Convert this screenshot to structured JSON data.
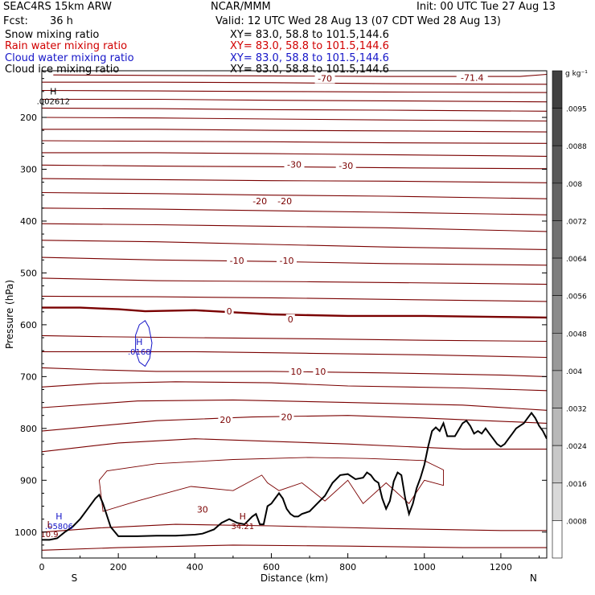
{
  "header": {
    "model": "SEAC4RS 15km ARW",
    "org": "NCAR/MMM",
    "init": "Init: 00 UTC Tue 27 Aug 13",
    "fcst_label": "Fcst:",
    "fcst_value": "36 h",
    "valid": "Valid: 12 UTC Wed 28 Aug 13 (07 CDT Wed 28 Aug 13)",
    "fields": [
      {
        "name": "Snow mixing ratio",
        "xy": "XY=  83.0, 58.8 to 101.5,144.6",
        "color": "#000000"
      },
      {
        "name": "Rain water mixing ratio",
        "xy": "XY=  83.0, 58.8 to 101.5,144.6",
        "color": "#d10000"
      },
      {
        "name": "Cloud water mixing ratio",
        "xy": "XY=  83.0, 58.8 to 101.5,144.6",
        "color": "#1515c8"
      },
      {
        "name": "Cloud ice mixing ratio",
        "xy": "XY=  83.0, 58.8 to 101.5,144.6",
        "color": "#000000"
      }
    ]
  },
  "chart_data": {
    "type": "line",
    "xlabel": "Distance (km)",
    "ylabel": "Pressure (hPa)",
    "xlim": [
      0,
      1320
    ],
    "ylim": [
      1050,
      110
    ],
    "x_ticks": [
      0,
      200,
      400,
      600,
      800,
      1000,
      1200
    ],
    "y_ticks": [
      200,
      300,
      400,
      500,
      600,
      700,
      800,
      900,
      1000
    ],
    "y_tick_labels": [
      "200",
      "300",
      "400",
      "500",
      "600",
      "700",
      "800",
      "900",
      "1000"
    ],
    "endpoint_labels": {
      "left": "S",
      "right": "N"
    },
    "temperature_contours": {
      "color": "#7a0000",
      "bold_level": 0,
      "lines": [
        {
          "x": [
            0,
            200,
            500,
            800,
            1100,
            1320
          ],
          "p": [
            1035,
            1030,
            1025,
            1027,
            1030,
            1030
          ]
        },
        {
          "x": [
            0,
            150,
            350,
            600,
            900,
            1200,
            1320
          ],
          "p": [
            1000,
            992,
            985,
            988,
            993,
            997,
            997
          ]
        },
        {
          "x": [
            0,
            200,
            400,
            600,
            800,
            1100,
            1320
          ],
          "p": [
            845,
            828,
            820,
            825,
            830,
            840,
            840
          ]
        },
        {
          "x": [
            0,
            300,
            550,
            800,
            1000,
            1320
          ],
          "p": [
            805,
            785,
            778,
            775,
            780,
            790
          ]
        },
        {
          "x": [
            0,
            250,
            500,
            800,
            1100,
            1320
          ],
          "p": [
            760,
            747,
            745,
            750,
            755,
            765
          ]
        },
        {
          "x": [
            0,
            150,
            350,
            600,
            800,
            1100,
            1320
          ],
          "p": [
            720,
            713,
            710,
            712,
            718,
            722,
            727
          ]
        },
        {
          "x": [
            0,
            150,
            300,
            600,
            900,
            1200,
            1320
          ],
          "p": [
            683,
            687,
            690,
            690,
            693,
            697,
            700
          ]
        },
        {
          "x": [
            0,
            200,
            400,
            700,
            1000,
            1320
          ],
          "p": [
            652,
            652,
            652,
            655,
            658,
            663
          ]
        },
        {
          "x": [
            0,
            150,
            400,
            700,
            1000,
            1320
          ],
          "p": [
            621,
            623,
            625,
            627,
            630,
            632
          ]
        },
        {
          "x": [
            0,
            100,
            200,
            270,
            400,
            600,
            800,
            1000,
            1200,
            1320
          ],
          "p": [
            567,
            567,
            570,
            574,
            572,
            580,
            583,
            583,
            585,
            586
          ]
        },
        {
          "x": [
            0,
            300,
            600,
            900,
            1320
          ],
          "p": [
            545,
            546,
            548,
            551,
            555
          ]
        },
        {
          "x": [
            0,
            300,
            700,
            1100,
            1320
          ],
          "p": [
            510,
            515,
            517,
            520,
            522
          ]
        },
        {
          "x": [
            0,
            300,
            600,
            900,
            1320
          ],
          "p": [
            470,
            475,
            478,
            482,
            485
          ]
        },
        {
          "x": [
            0,
            300,
            600,
            900,
            1320
          ],
          "p": [
            437,
            440,
            445,
            450,
            455
          ]
        },
        {
          "x": [
            0,
            300,
            600,
            900,
            1320
          ],
          "p": [
            405,
            407,
            410,
            413,
            420
          ]
        },
        {
          "x": [
            0,
            300,
            600,
            900,
            1320
          ],
          "p": [
            375,
            377,
            380,
            383,
            388
          ]
        },
        {
          "x": [
            0,
            300,
            600,
            900,
            1320
          ],
          "p": [
            345,
            347,
            350,
            352,
            357
          ]
        },
        {
          "x": [
            0,
            300,
            600,
            900,
            1320
          ],
          "p": [
            318,
            320,
            322,
            323,
            326
          ]
        },
        {
          "x": [
            0,
            300,
            600,
            900,
            1320
          ],
          "p": [
            292,
            294,
            295,
            297,
            299
          ]
        },
        {
          "x": [
            0,
            300,
            600,
            900,
            1320
          ],
          "p": [
            268,
            268,
            270,
            272,
            275
          ]
        },
        {
          "x": [
            0,
            300,
            600,
            900,
            1320
          ],
          "p": [
            245,
            246,
            247,
            249,
            250
          ]
        },
        {
          "x": [
            0,
            300,
            600,
            900,
            1320
          ],
          "p": [
            223,
            223,
            225,
            226,
            228
          ]
        },
        {
          "x": [
            0,
            300,
            600,
            900,
            1320
          ],
          "p": [
            200,
            201,
            203,
            205,
            207
          ]
        },
        {
          "x": [
            0,
            300,
            600,
            900,
            1320
          ],
          "p": [
            182,
            183,
            185,
            186,
            188
          ]
        },
        {
          "x": [
            0,
            300,
            600,
            900,
            1320
          ],
          "p": [
            165,
            165,
            167,
            168,
            170
          ]
        },
        {
          "x": [
            0,
            300,
            600,
            900,
            1320
          ],
          "p": [
            148,
            149,
            150,
            151,
            152
          ]
        },
        {
          "x": [
            0,
            300,
            600,
            900,
            1320
          ],
          "p": [
            132,
            132,
            133,
            135,
            136
          ]
        },
        {
          "x": [
            30,
            300,
            600,
            900,
            1250,
            1320
          ],
          "p": [
            118,
            119,
            120,
            121,
            121,
            117
          ]
        }
      ],
      "labels": [
        {
          "text": "-70",
          "x": 740,
          "p": 125
        },
        {
          "text": "-71.4",
          "x": 1125,
          "p": 123
        },
        {
          "text": "-30",
          "x": 660,
          "p": 291
        },
        {
          "text": "-30",
          "x": 795,
          "p": 293
        },
        {
          "text": "-20",
          "x": 570,
          "p": 361
        },
        {
          "text": "-20",
          "x": 635,
          "p": 361
        },
        {
          "text": "-10",
          "x": 510,
          "p": 476
        },
        {
          "text": "-10",
          "x": 640,
          "p": 476
        },
        {
          "text": "0",
          "x": 490,
          "p": 574
        },
        {
          "text": "0",
          "x": 650,
          "p": 589
        },
        {
          "text": "10",
          "x": 665,
          "p": 690
        },
        {
          "text": "10",
          "x": 728,
          "p": 690
        },
        {
          "text": "20",
          "x": 480,
          "p": 783
        },
        {
          "text": "20",
          "x": 640,
          "p": 778
        },
        {
          "text": "30",
          "x": 420,
          "p": 956
        }
      ]
    },
    "rain_region": {
      "color": "#7a0000",
      "x": [
        150,
        170,
        300,
        500,
        700,
        850,
        1000,
        1050,
        1050,
        1000,
        960,
        900,
        840,
        800,
        740,
        680,
        620,
        590,
        575,
        500,
        390,
        250,
        160,
        150
      ],
      "p": [
        900,
        882,
        868,
        860,
        856,
        858,
        862,
        880,
        910,
        900,
        945,
        905,
        945,
        900,
        940,
        905,
        920,
        905,
        890,
        920,
        912,
        940,
        960,
        900
      ]
    },
    "cloud_water_contour": {
      "color": "#1515c8",
      "x": [
        245,
        255,
        270,
        280,
        288,
        282,
        270,
        255,
        245
      ],
      "p": [
        620,
        600,
        592,
        605,
        635,
        665,
        680,
        672,
        650
      ]
    },
    "terrain": {
      "color": "#000000",
      "x": [
        0,
        20,
        40,
        60,
        80,
        100,
        120,
        140,
        150,
        160,
        180,
        200,
        250,
        300,
        350,
        400,
        420,
        450,
        470,
        490,
        510,
        530,
        550,
        560,
        570,
        580,
        590,
        600,
        610,
        620,
        630,
        640,
        650,
        660,
        670,
        680,
        700,
        720,
        740,
        760,
        780,
        800,
        820,
        840,
        850,
        860,
        870,
        880,
        890,
        900,
        910,
        920,
        930,
        940,
        950,
        960,
        970,
        980,
        990,
        1000,
        1010,
        1020,
        1030,
        1040,
        1050,
        1060,
        1080,
        1100,
        1110,
        1120,
        1130,
        1140,
        1150,
        1160,
        1170,
        1180,
        1190,
        1200,
        1210,
        1220,
        1230,
        1240,
        1250,
        1260,
        1270,
        1280,
        1290,
        1300,
        1310,
        1320
      ],
      "p": [
        1015,
        1015,
        1012,
        1000,
        990,
        975,
        955,
        935,
        928,
        945,
        990,
        1008,
        1008,
        1007,
        1007,
        1005,
        1003,
        995,
        982,
        975,
        982,
        985,
        970,
        965,
        985,
        985,
        950,
        945,
        935,
        925,
        935,
        955,
        965,
        970,
        970,
        965,
        960,
        945,
        930,
        905,
        890,
        888,
        898,
        895,
        885,
        890,
        900,
        905,
        935,
        955,
        940,
        902,
        885,
        890,
        935,
        965,
        945,
        915,
        895,
        870,
        835,
        805,
        798,
        805,
        790,
        815,
        815,
        790,
        785,
        795,
        810,
        805,
        810,
        800,
        810,
        820,
        830,
        835,
        830,
        820,
        810,
        800,
        795,
        790,
        780,
        770,
        780,
        795,
        805,
        820
      ]
    },
    "extrema_labels": [
      {
        "letter": "H",
        "value": ".002612",
        "x": 30,
        "p": 165,
        "color": "#000000"
      },
      {
        "letter": "H",
        "value": ".0168",
        "x": 255,
        "p": 648,
        "color": "#1515c8"
      },
      {
        "letter": "H",
        "value": ".05806",
        "x": 45,
        "p": 985,
        "color": "#1515c8"
      },
      {
        "letter": "H",
        "value": "34.21",
        "x": 525,
        "p": 985,
        "color": "#7a0000"
      },
      {
        "letter": "L",
        "value": "10.9",
        "x": 20,
        "p": 1000,
        "color": "#7a0000"
      }
    ],
    "colorbar": {
      "unit": "g kg⁻¹",
      "labels": [
        ".0095",
        ".0088",
        ".008",
        ".0072",
        ".0064",
        ".0056",
        ".0048",
        ".004",
        ".0032",
        ".0024",
        ".0016",
        ".0008"
      ],
      "colors": [
        "#404040",
        "#4c4c4c",
        "#585858",
        "#646464",
        "#717171",
        "#7e7e7e",
        "#8b8b8b",
        "#999999",
        "#a8a8a8",
        "#b8b8b8",
        "#c8c8c8",
        "#d9d9d9",
        "#ffffff"
      ]
    }
  }
}
